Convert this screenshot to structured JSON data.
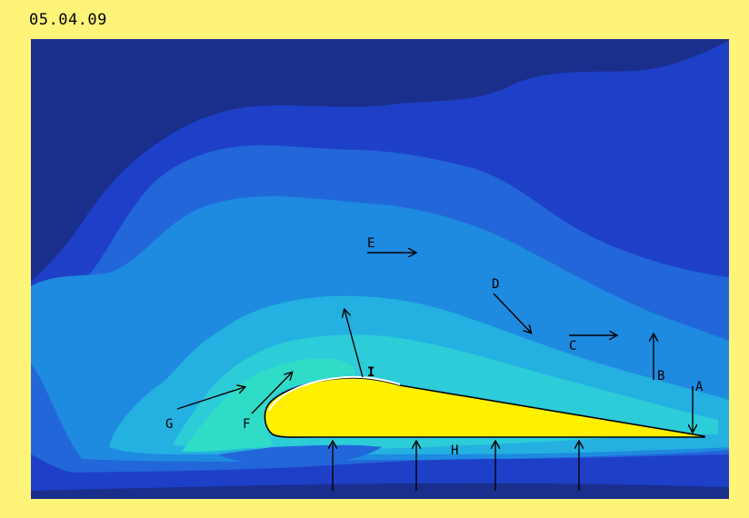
{
  "header": {
    "date": "05.04.09"
  },
  "colors": {
    "frame": "#FFF47A",
    "band_darkest": "#1A2E8C",
    "band_dark": "#1E40C8",
    "band_mid": "#2266D9",
    "band_light": "#1E8AE0",
    "band_lighter": "#24B0E0",
    "band_cyan": "#2CCCD8",
    "band_teal": "#2FDCC8",
    "airfoil_fill": "#FFF000",
    "arrow": "#000000"
  },
  "labels": {
    "A": "A",
    "B": "B",
    "C": "C",
    "D": "D",
    "E": "E",
    "F": "F",
    "G": "G",
    "H": "H",
    "I": "I"
  }
}
